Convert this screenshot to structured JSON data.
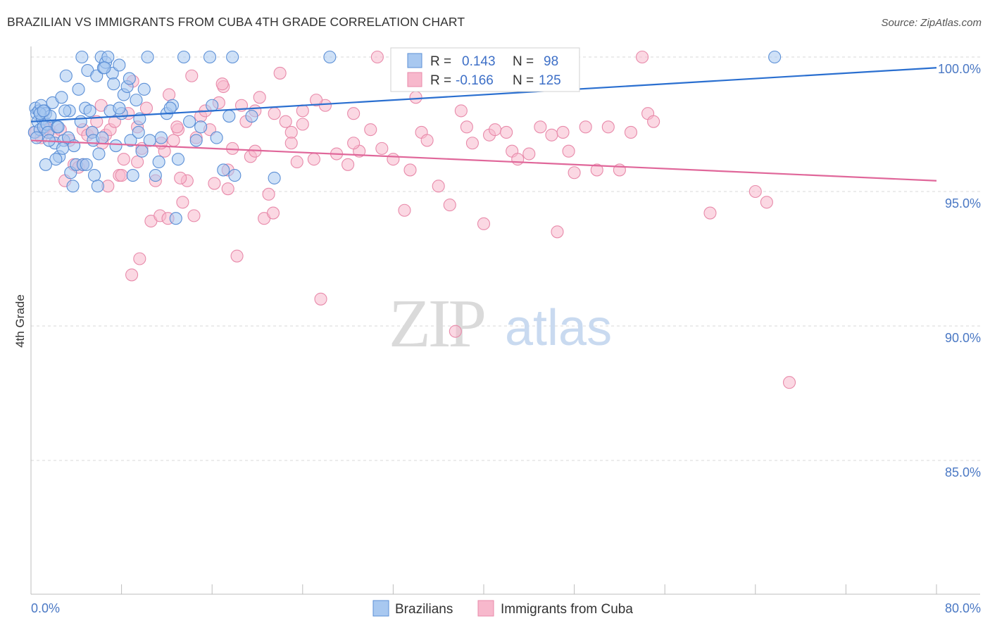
{
  "title": "BRAZILIAN VS IMMIGRANTS FROM CUBA 4TH GRADE CORRELATION CHART",
  "source": "Source: ZipAtlas.com",
  "watermark": {
    "zip": "ZIP",
    "atlas": "atlas"
  },
  "colors": {
    "blue_fill": "#a8c8f0",
    "blue_stroke": "#5b8fd6",
    "blue_line": "#2a6fd0",
    "pink_fill": "#f7b8cc",
    "pink_stroke": "#e88aaa",
    "pink_line": "#e0679a",
    "grid": "#d8d8d8",
    "tick_text": "#4a78c4"
  },
  "stats": {
    "blue": {
      "r_label": "R =",
      "r_value": "0.143",
      "n_label": "N =",
      "n_value": "98"
    },
    "pink": {
      "r_label": "R =",
      "r_value": "-0.166",
      "n_label": "N =",
      "n_value": "125"
    }
  },
  "chart_data": {
    "type": "scatter",
    "title": "BRAZILIAN VS IMMIGRANTS FROM CUBA 4TH GRADE CORRELATION CHART",
    "xlabel": "",
    "ylabel": "4th Grade",
    "xlim": [
      0,
      80
    ],
    "ylim": [
      80.5,
      100.5
    ],
    "x_tick_labels": [
      {
        "value": 0,
        "label": "0.0%"
      },
      {
        "value": 80,
        "label": "80.0%"
      }
    ],
    "y_tick_labels": [
      {
        "value": 100,
        "label": "100.0%"
      },
      {
        "value": 95,
        "label": "95.0%"
      },
      {
        "value": 90,
        "label": "90.0%"
      },
      {
        "value": 85,
        "label": "85.0%"
      }
    ],
    "grid": true,
    "legend_position": "bottom-center",
    "series": [
      {
        "name": "Brazilians",
        "color": "#5b8fd6",
        "trend": {
          "x": [
            0,
            80
          ],
          "y": [
            97.6,
            99.6
          ]
        },
        "points": [
          [
            0.3,
            97.2
          ],
          [
            0.4,
            98.1
          ],
          [
            0.5,
            97.9
          ],
          [
            0.6,
            97.6
          ],
          [
            0.7,
            98.0
          ],
          [
            0.8,
            97.3
          ],
          [
            0.9,
            98.2
          ],
          [
            1.0,
            97.7
          ],
          [
            1.1,
            97.4
          ],
          [
            1.2,
            98.0
          ],
          [
            1.3,
            97.9
          ],
          [
            1.4,
            97.5
          ],
          [
            1.5,
            97.2
          ],
          [
            1.7,
            97.8
          ],
          [
            1.9,
            98.3
          ],
          [
            2.1,
            96.8
          ],
          [
            2.3,
            97.4
          ],
          [
            2.5,
            96.3
          ],
          [
            2.7,
            98.5
          ],
          [
            2.9,
            96.9
          ],
          [
            3.1,
            99.3
          ],
          [
            3.3,
            97.0
          ],
          [
            3.5,
            95.7
          ],
          [
            3.7,
            95.2
          ],
          [
            3.4,
            98.0
          ],
          [
            4.0,
            96.0
          ],
          [
            4.2,
            98.8
          ],
          [
            4.4,
            97.6
          ],
          [
            4.6,
            96.0
          ],
          [
            4.8,
            98.1
          ],
          [
            5.0,
            99.5
          ],
          [
            5.2,
            98.0
          ],
          [
            5.4,
            97.2
          ],
          [
            5.6,
            95.6
          ],
          [
            5.8,
            99.3
          ],
          [
            6.0,
            96.4
          ],
          [
            6.2,
            100.0
          ],
          [
            6.4,
            99.6
          ],
          [
            6.6,
            99.8
          ],
          [
            6.8,
            100.0
          ],
          [
            7.0,
            98.0
          ],
          [
            7.2,
            99.4
          ],
          [
            7.5,
            96.7
          ],
          [
            7.8,
            99.7
          ],
          [
            8.0,
            97.9
          ],
          [
            8.2,
            98.6
          ],
          [
            8.5,
            98.9
          ],
          [
            8.8,
            96.9
          ],
          [
            9.0,
            95.6
          ],
          [
            9.3,
            98.4
          ],
          [
            9.5,
            97.2
          ],
          [
            9.8,
            96.5
          ],
          [
            10.0,
            98.8
          ],
          [
            10.5,
            96.9
          ],
          [
            11.0,
            95.6
          ],
          [
            11.3,
            96.1
          ],
          [
            12.0,
            97.9
          ],
          [
            12.5,
            98.2
          ],
          [
            12.8,
            94.0
          ],
          [
            13.0,
            96.2
          ],
          [
            14.0,
            97.6
          ],
          [
            15.0,
            97.4
          ],
          [
            16.0,
            98.2
          ],
          [
            17.0,
            95.8
          ],
          [
            18.0,
            95.6
          ],
          [
            19.5,
            97.8
          ],
          [
            21.5,
            95.5
          ],
          [
            2.2,
            96.2
          ],
          [
            3.8,
            96.7
          ],
          [
            5.5,
            96.9
          ],
          [
            6.3,
            97.0
          ],
          [
            7.3,
            99.0
          ],
          [
            10.3,
            100.0
          ],
          [
            13.5,
            100.0
          ],
          [
            15.8,
            100.0
          ],
          [
            17.8,
            100.0
          ],
          [
            26.4,
            100.0
          ],
          [
            65.7,
            100.0
          ],
          [
            4.5,
            100.0
          ],
          [
            6.5,
            99.6
          ],
          [
            8.7,
            99.2
          ],
          [
            1.6,
            96.9
          ],
          [
            2.4,
            97.4
          ],
          [
            2.8,
            96.6
          ],
          [
            3.0,
            98.0
          ],
          [
            0.5,
            97.0
          ],
          [
            0.8,
            97.9
          ],
          [
            1.1,
            98.0
          ],
          [
            1.3,
            96.0
          ],
          [
            4.9,
            96.0
          ],
          [
            5.9,
            95.2
          ],
          [
            7.8,
            98.1
          ],
          [
            9.6,
            97.7
          ],
          [
            11.5,
            97.0
          ],
          [
            12.3,
            98.1
          ],
          [
            14.6,
            96.9
          ],
          [
            16.4,
            97.0
          ],
          [
            17.5,
            97.8
          ]
        ]
      },
      {
        "name": "Immigrants from Cuba",
        "color": "#e88aaa",
        "trend": {
          "x": [
            0,
            80
          ],
          "y": [
            96.9,
            95.4
          ]
        },
        "points": [
          [
            0.4,
            97.2
          ],
          [
            0.9,
            97.0
          ],
          [
            1.3,
            97.4
          ],
          [
            1.6,
            97.3
          ],
          [
            2.0,
            97.1
          ],
          [
            2.6,
            97.3
          ],
          [
            3.0,
            95.4
          ],
          [
            3.4,
            96.9
          ],
          [
            3.8,
            96.0
          ],
          [
            4.2,
            95.9
          ],
          [
            4.6,
            97.3
          ],
          [
            5.0,
            97.1
          ],
          [
            5.4,
            97.2
          ],
          [
            5.8,
            97.6
          ],
          [
            6.2,
            98.2
          ],
          [
            6.6,
            97.1
          ],
          [
            7.0,
            97.3
          ],
          [
            7.4,
            97.6
          ],
          [
            7.8,
            95.6
          ],
          [
            8.2,
            96.2
          ],
          [
            8.6,
            97.9
          ],
          [
            9.0,
            99.1
          ],
          [
            9.4,
            97.4
          ],
          [
            9.8,
            96.6
          ],
          [
            10.2,
            98.1
          ],
          [
            10.6,
            93.9
          ],
          [
            11.0,
            95.4
          ],
          [
            11.4,
            94.1
          ],
          [
            11.8,
            96.5
          ],
          [
            12.2,
            98.6
          ],
          [
            12.6,
            96.9
          ],
          [
            13.0,
            97.3
          ],
          [
            13.4,
            94.6
          ],
          [
            13.8,
            95.4
          ],
          [
            14.2,
            99.3
          ],
          [
            14.6,
            97.0
          ],
          [
            15.0,
            97.8
          ],
          [
            15.4,
            98.0
          ],
          [
            15.8,
            97.3
          ],
          [
            16.2,
            95.3
          ],
          [
            16.6,
            98.3
          ],
          [
            17.0,
            98.9
          ],
          [
            17.4,
            95.8
          ],
          [
            17.8,
            96.6
          ],
          [
            18.2,
            92.6
          ],
          [
            18.6,
            98.2
          ],
          [
            19.0,
            97.6
          ],
          [
            19.4,
            96.3
          ],
          [
            19.8,
            98.0
          ],
          [
            20.2,
            98.5
          ],
          [
            20.6,
            94.0
          ],
          [
            21.0,
            94.9
          ],
          [
            21.5,
            97.9
          ],
          [
            22.0,
            99.4
          ],
          [
            22.5,
            97.6
          ],
          [
            23.0,
            97.2
          ],
          [
            23.5,
            96.1
          ],
          [
            24.0,
            98.0
          ],
          [
            25.0,
            96.2
          ],
          [
            26.0,
            98.2
          ],
          [
            27.0,
            96.4
          ],
          [
            28.0,
            96.0
          ],
          [
            28.5,
            97.9
          ],
          [
            29.0,
            96.5
          ],
          [
            30.0,
            97.3
          ],
          [
            31.0,
            96.6
          ],
          [
            32.0,
            96.2
          ],
          [
            33.0,
            94.3
          ],
          [
            34.0,
            98.5
          ],
          [
            34.5,
            97.2
          ],
          [
            35.0,
            96.9
          ],
          [
            36.0,
            95.2
          ],
          [
            37.0,
            94.5
          ],
          [
            38.0,
            98.0
          ],
          [
            38.5,
            97.4
          ],
          [
            39.0,
            96.8
          ],
          [
            40.0,
            93.8
          ],
          [
            40.5,
            97.1
          ],
          [
            41.0,
            97.3
          ],
          [
            42.0,
            97.2
          ],
          [
            42.5,
            96.5
          ],
          [
            43.0,
            96.2
          ],
          [
            44.0,
            96.4
          ],
          [
            45.0,
            97.4
          ],
          [
            46.0,
            97.1
          ],
          [
            46.5,
            93.5
          ],
          [
            47.0,
            97.2
          ],
          [
            47.5,
            96.5
          ],
          [
            48.0,
            95.7
          ],
          [
            49.0,
            97.4
          ],
          [
            50.0,
            95.8
          ],
          [
            51.0,
            97.4
          ],
          [
            52.0,
            95.8
          ],
          [
            53.0,
            97.2
          ],
          [
            54.0,
            100.0
          ],
          [
            54.5,
            97.9
          ],
          [
            55.0,
            97.6
          ],
          [
            60.0,
            94.2
          ],
          [
            64.0,
            95.0
          ],
          [
            65.0,
            94.6
          ],
          [
            67.0,
            87.9
          ],
          [
            4.6,
            96.0
          ],
          [
            6.8,
            95.2
          ],
          [
            8.0,
            95.6
          ],
          [
            9.6,
            92.5
          ],
          [
            8.9,
            91.9
          ],
          [
            23.0,
            96.8
          ],
          [
            25.6,
            91.0
          ],
          [
            25.2,
            98.4
          ],
          [
            30.6,
            100.0
          ],
          [
            37.5,
            89.8
          ],
          [
            17.4,
            95.1
          ],
          [
            16.9,
            99.0
          ],
          [
            13.2,
            95.5
          ],
          [
            12.1,
            94.0
          ],
          [
            19.8,
            96.5
          ],
          [
            21.4,
            94.2
          ],
          [
            12.9,
            97.4
          ],
          [
            11.5,
            96.8
          ],
          [
            14.4,
            94.1
          ],
          [
            9.4,
            96.1
          ],
          [
            6.3,
            96.8
          ],
          [
            24.0,
            97.5
          ],
          [
            28.5,
            96.8
          ],
          [
            33.5,
            95.8
          ]
        ]
      }
    ]
  },
  "legend": {
    "items": [
      {
        "label": "Brazilians"
      },
      {
        "label": "Immigrants from Cuba"
      }
    ]
  }
}
